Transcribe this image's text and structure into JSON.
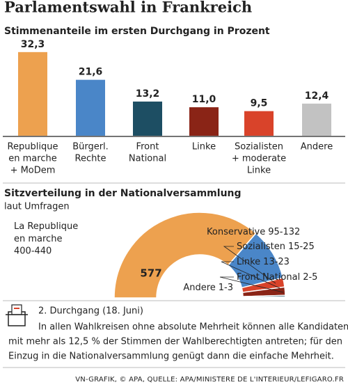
{
  "title": "Parlamentswahl in Frankreich",
  "chart_data": [
    {
      "type": "bar",
      "title": "Stimmenanteile im ersten Durchgang in Prozent",
      "categories": [
        [
          "Republique",
          "en marche",
          "+ MoDem"
        ],
        [
          "Bürgerl.",
          "Rechte"
        ],
        [
          "Front",
          "National"
        ],
        [
          "Linke"
        ],
        [
          "Sozialisten",
          "+ moderate",
          "Linke"
        ],
        [
          "Andere"
        ]
      ],
      "values": [
        32.3,
        21.6,
        13.2,
        11.0,
        9.5,
        12.4
      ],
      "value_labels": [
        "32,3",
        "21,6",
        "13,2",
        "11,0",
        "9,5",
        "12,4"
      ],
      "colors": [
        "#eda14f",
        "#4a86c8",
        "#1d4e63",
        "#8a2416",
        "#d9432a",
        "#c2c2c2"
      ]
    },
    {
      "type": "half-donut",
      "title": "Sitzverteilung in der Nationalversammlung",
      "subtitle": "laut Umfragen",
      "total": 577,
      "categories": [
        [
          "La Republique",
          "en marche"
        ],
        [
          "Konservative"
        ],
        [
          "Sozialisten"
        ],
        [
          "Linke"
        ],
        [
          "Front National"
        ],
        [
          "Andere"
        ]
      ],
      "values": [
        [
          400,
          440
        ],
        [
          95,
          132
        ],
        [
          15,
          25
        ],
        [
          13,
          23
        ],
        [
          2,
          5
        ],
        [
          1,
          3
        ]
      ],
      "value_labels": [
        "400-440",
        "95-132",
        "15-25",
        "13-23",
        "2-5",
        "1-3"
      ],
      "colors": [
        "#eda14f",
        "#4a86c8",
        "#d9432a",
        "#8a2416",
        "#1d4e63",
        "#c2c2c2"
      ]
    }
  ],
  "note": {
    "heading": "2. Durchgang (18. Juni)",
    "lines": [
      "In allen Wahlkreisen ohne absolute Mehrheit können alle Kandidaten",
      "mit mehr als 12,5 % der Stimmen der Wahlberechtigten antreten; für den",
      "Einzug in die Nationalversammlung genügt dann die einfache Mehrheit."
    ]
  },
  "source": "VN-GRAFIK, © APA, QUELLE: APA/MINISTERE DE L'INTERIEUR/LEFIGARO.FR"
}
